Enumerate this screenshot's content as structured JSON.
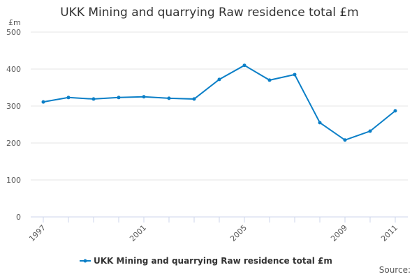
{
  "chart_data": {
    "type": "line",
    "title": "UKK Mining and quarrying Raw residence total £m",
    "ylabel": "£m",
    "xlabel": "",
    "ylim": [
      0,
      500
    ],
    "yticks": [
      0,
      100,
      200,
      300,
      400,
      500
    ],
    "xticks_labeled": [
      1997,
      2001,
      2005,
      2009,
      2011
    ],
    "x": [
      1997,
      1998,
      1999,
      2000,
      2001,
      2002,
      2003,
      2004,
      2005,
      2006,
      2007,
      2008,
      2009,
      2010,
      2011
    ],
    "series": [
      {
        "name": "UKK Mining and quarrying Raw residence total £m",
        "color": "#0b7fc7",
        "values": [
          311,
          323,
          319,
          323,
          325,
          321,
          319,
          372,
          410,
          370,
          385,
          255,
          208,
          232,
          287
        ]
      }
    ],
    "grid": true,
    "legend": "bottom-center"
  },
  "source_label": "Source:"
}
